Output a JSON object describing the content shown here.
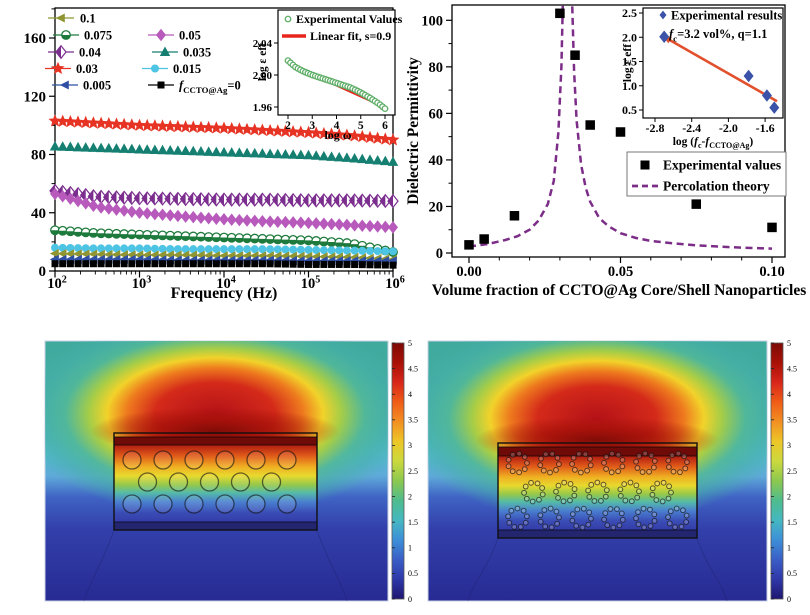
{
  "figure": {
    "background": "#ffffff"
  },
  "chart_data": [
    {
      "id": "tl_main",
      "type": "scatter",
      "xscale": "log",
      "xlabel": "Frequency (Hz)",
      "xtick_exponents": [
        2,
        3,
        4,
        5,
        6
      ],
      "yticks": [
        0,
        40,
        80,
        120,
        160
      ],
      "yminor": [
        20,
        60,
        100,
        140,
        180
      ],
      "xlim": [
        100,
        1000000
      ],
      "ylim": [
        0,
        181
      ],
      "anchors_logx": [
        2,
        2.5,
        3,
        3.5,
        4,
        4.5,
        5,
        5.5,
        6
      ],
      "marker_count": 45,
      "series": [
        {
          "label": "0.03",
          "marker": "star",
          "color": "#e63323",
          "size": 11,
          "y": [
            103,
            101.5,
            100,
            99,
            98,
            96.5,
            95,
            93,
            90
          ]
        },
        {
          "label": "0.035",
          "marker": "triup",
          "color": "#157f72",
          "size": 9.5,
          "y": [
            85.5,
            84.5,
            83.5,
            82.5,
            81.5,
            80.5,
            79.5,
            77.5,
            75
          ]
        },
        {
          "label": "0.04",
          "marker": "diamondhalf",
          "color": "#7b2e8e",
          "size": 10,
          "y": [
            55,
            51,
            50,
            49.5,
            49,
            49,
            48.5,
            48.5,
            48
          ]
        },
        {
          "label": "0.05",
          "marker": "diamond",
          "color": "#b75abc",
          "size": 10,
          "y": [
            53,
            44,
            40,
            37.5,
            35.5,
            34,
            33,
            31.5,
            30
          ]
        },
        {
          "label": "0.075",
          "marker": "circlehalf",
          "color": "#1e7a3c",
          "size": 8.5,
          "y": [
            28,
            26,
            25,
            24,
            23,
            22,
            21,
            19,
            13
          ]
        },
        {
          "label": "0.015",
          "marker": "circle",
          "color": "#4ec4e4",
          "size": 8,
          "y": [
            16,
            15.5,
            15.5,
            15,
            15,
            15,
            14.5,
            14,
            13.5
          ]
        },
        {
          "label": "0.1",
          "marker": "trileft",
          "color": "#8f9631",
          "size": 9,
          "y": [
            12,
            11.5,
            11,
            11,
            10.5,
            10.5,
            10,
            9.5,
            8
          ]
        },
        {
          "label": "0.005",
          "marker": "trileft",
          "color": "#2f4fa5",
          "size": 9,
          "y": [
            8,
            8,
            8,
            7.5,
            7.5,
            7.5,
            7,
            7,
            7
          ]
        },
        {
          "label": "0",
          "marker": "square",
          "color": "#000000",
          "size": 7,
          "y": [
            5,
            5,
            5,
            5,
            5,
            5,
            4.5,
            4.5,
            4
          ]
        }
      ],
      "legend_rows": [
        [
          {
            "series": "0.1",
            "label": [
              {
                "t": "0.1"
              }
            ]
          }
        ],
        [
          {
            "series": "0.075",
            "label": [
              {
                "t": "0.075"
              }
            ]
          },
          {
            "series": "0.05",
            "label": [
              {
                "t": "0.05"
              }
            ]
          }
        ],
        [
          {
            "series": "0.04",
            "label": [
              {
                "t": "0.04"
              }
            ]
          },
          {
            "series": "0.035",
            "label": [
              {
                "t": "0.035"
              }
            ]
          }
        ],
        [
          {
            "series": "0.03",
            "label": [
              {
                "t": "0.03"
              }
            ]
          },
          {
            "series": "0.015",
            "label": [
              {
                "t": "0.015"
              }
            ]
          }
        ],
        [
          {
            "series": "0.005",
            "label": [
              {
                "t": "0.005"
              }
            ]
          },
          {
            "series": "0",
            "label": [
              {
                "t": "f",
                "s": "i"
              },
              {
                "t": "CCTO@Ag",
                "s": "sub"
              },
              {
                "t": "=0"
              }
            ]
          }
        ]
      ]
    },
    {
      "id": "tl_inset",
      "type": "scatter_line",
      "xlabel_segments": [
        {
          "t": "log ω"
        }
      ],
      "ylabel_segments": [
        {
          "t": "log ε "
        },
        {
          "t": "eff"
        }
      ],
      "xticks": [
        "2",
        "3",
        "4",
        "5",
        "6"
      ],
      "yticks": [
        "1.96",
        "2.00",
        "2.04"
      ],
      "points_x": [
        2,
        2.3,
        2.6,
        3,
        3.4,
        3.8,
        4.2,
        4.6,
        5,
        5.4,
        5.7,
        6
      ],
      "points_y": [
        2.018,
        2.01,
        2.005,
        2.0,
        1.996,
        1.992,
        1.988,
        1.984,
        1.978,
        1.971,
        1.965,
        1.958
      ],
      "marker_count": 40,
      "exp_label": [
        {
          "t": "Experimental Values"
        }
      ],
      "exp_color": "#5fae68",
      "fit": {
        "x": [
          2,
          6
        ],
        "y": [
          2.015,
          1.96
        ],
        "color": "#e8241c",
        "label": [
          {
            "t": "Linear fit, s=0.9"
          }
        ]
      }
    },
    {
      "id": "tr_main",
      "type": "scatter_curve",
      "xlabel": "Volume fraction of CCTO@Ag Core/Shell Nanoparticles",
      "ylabel": "Dielectric Permittivity",
      "xticks": [
        "0.00",
        "0.05",
        "0.10"
      ],
      "xtick_values": [
        0,
        0.05,
        0.1
      ],
      "xminor_values": [
        0.01,
        0.02,
        0.03,
        0.04,
        0.06,
        0.07,
        0.08,
        0.09
      ],
      "yticks": [
        0,
        20,
        40,
        60,
        80,
        100
      ],
      "yminor": [
        10,
        30,
        50,
        70,
        90
      ],
      "points": [
        [
          0.0,
          3.5
        ],
        [
          0.005,
          6
        ],
        [
          0.015,
          16
        ],
        [
          0.03,
          103
        ],
        [
          0.035,
          85
        ],
        [
          0.04,
          55
        ],
        [
          0.05,
          52
        ],
        [
          0.075,
          21
        ],
        [
          0.1,
          11
        ]
      ],
      "point_color": "#000000",
      "curve_color": "#7b2d87",
      "curve_left": [
        [
          0,
          2.8
        ],
        [
          0.006,
          3.8
        ],
        [
          0.012,
          5.6
        ],
        [
          0.016,
          7.2
        ],
        [
          0.02,
          10
        ],
        [
          0.023,
          14
        ],
        [
          0.026,
          21
        ],
        [
          0.028,
          31
        ],
        [
          0.0295,
          52
        ],
        [
          0.0305,
          80
        ],
        [
          0.0312,
          120
        ],
        [
          0.0318,
          190
        ]
      ],
      "curve_right": [
        [
          0.0333,
          190
        ],
        [
          0.034,
          110
        ],
        [
          0.0347,
          78
        ],
        [
          0.0355,
          57
        ],
        [
          0.037,
          38
        ],
        [
          0.0385,
          28
        ],
        [
          0.04,
          22
        ],
        [
          0.043,
          15
        ],
        [
          0.046,
          11.5
        ],
        [
          0.05,
          8.5
        ],
        [
          0.055,
          6.5
        ],
        [
          0.06,
          5.2
        ],
        [
          0.067,
          4.2
        ],
        [
          0.075,
          3.3
        ],
        [
          0.083,
          2.7
        ],
        [
          0.092,
          2.2
        ],
        [
          0.1,
          1.9
        ]
      ],
      "legend": [
        {
          "marker": "square",
          "color": "#000000",
          "label": [
            {
              "t": "Experimental values"
            }
          ]
        },
        {
          "marker": "dash",
          "color": "#7b2d87",
          "label": [
            {
              "t": "Percolation theory"
            }
          ]
        }
      ]
    },
    {
      "id": "tr_inset",
      "type": "scatter_line",
      "xlabel_segments": [
        {
          "t": "log ("
        },
        {
          "t": "f",
          "s": "i"
        },
        {
          "t": "c",
          "s": "sub"
        },
        {
          "t": "-"
        },
        {
          "t": "f",
          "s": "i"
        },
        {
          "t": "CCTO@Ag",
          "s": "sub"
        },
        {
          "t": ")"
        }
      ],
      "ylabel_segments": [
        {
          "t": "log ε "
        },
        {
          "t": "eff"
        }
      ],
      "xticks": [
        "-2.8",
        "-2.4",
        "-2.0",
        "-1.6"
      ],
      "xtick_values": [
        -2.8,
        -2.4,
        -2.0,
        -1.6
      ],
      "yticks": [
        "0.5",
        "1.0",
        "1.5",
        "2.0",
        "2.5"
      ],
      "ytick_values": [
        0.5,
        1.0,
        1.5,
        2.0,
        2.5
      ],
      "points": [
        [
          -2.7,
          2.01
        ],
        [
          -1.78,
          1.2
        ],
        [
          -1.58,
          0.8
        ],
        [
          -1.5,
          0.55
        ]
      ],
      "point_color": "#3a53a8",
      "legend_label": [
        {
          "t": "Experimental results"
        }
      ],
      "fit": {
        "x": [
          -2.72,
          -1.47
        ],
        "y": [
          2.03,
          0.68
        ],
        "color": "#e2512e"
      },
      "fit_label": [
        {
          "t": "f",
          "s": "i"
        },
        {
          "t": "c",
          "s": "sub"
        },
        {
          "t": "=3.2 vol%, q=1.1"
        }
      ]
    }
  ],
  "simulations": {
    "colorbar": {
      "min": 0,
      "max": 5,
      "tick_labels": [
        "0",
        "0.5",
        "1",
        "1.5",
        "2",
        "2.5",
        "3",
        "3.5",
        "4",
        "4.5",
        "5"
      ],
      "tick_values": [
        0,
        0.5,
        1,
        1.5,
        2,
        2.5,
        3,
        3.5,
        4,
        4.5,
        5
      ]
    },
    "palette_low_to_high": [
      "#1e1670",
      "#2f38a8",
      "#3a5ec6",
      "#3d8fd8",
      "#45b8c1",
      "#4fbc8e",
      "#8cc84e",
      "#cbd93e",
      "#edc628",
      "#f29022",
      "#ef5c17",
      "#d8261a",
      "#a81006",
      "#7d0b06"
    ],
    "left": {
      "particle_style": "plain",
      "rows": [
        6,
        5,
        6
      ]
    },
    "right": {
      "particle_style": "decorated",
      "rows": [
        6,
        5,
        6
      ]
    }
  }
}
